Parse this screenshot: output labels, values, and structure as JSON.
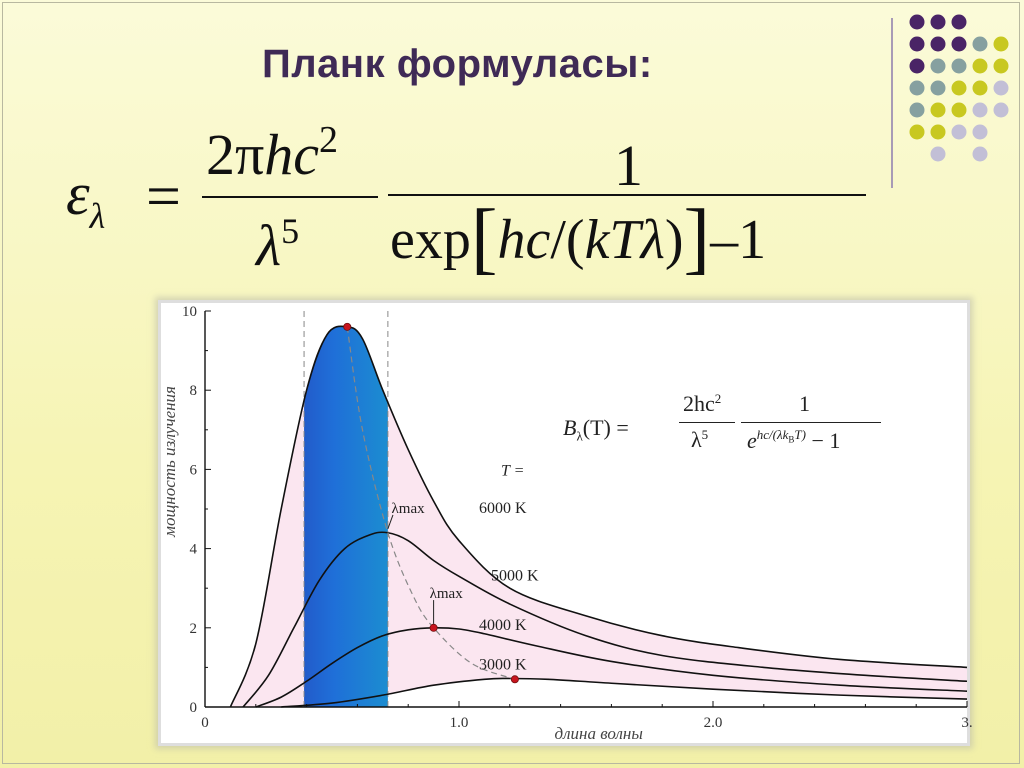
{
  "slide": {
    "title": "Планк формуласы:"
  },
  "formula": {
    "lhs": "ε",
    "lhs_sub": "λ",
    "eq": "=",
    "num1_a": "2π",
    "num1_b": "hc",
    "num1_sup": "2",
    "den1": "λ",
    "den1_sup": "5",
    "num2": "1",
    "den2_a": "exp",
    "den2_b": "hc",
    "den2_c": "/(",
    "den2_d": "kTλ",
    "den2_e": ")",
    "den2_f": "–1"
  },
  "b_formula": {
    "lhs_b": "B",
    "lhs_sub": "λ",
    "lhs_rest": "(T) =",
    "num1": "2hc",
    "num1_sup": "2",
    "den1": "λ",
    "den1_sup": "5",
    "num2": "1",
    "den2_e": "e",
    "den2_sup": "hc/(λk",
    "den2_sup_sub": "B",
    "den2_sup_end": "T)",
    "den2_rest": " − 1"
  },
  "chart_data": {
    "type": "line",
    "xlabel": "длина волны",
    "ylabel": "мощность излучения",
    "xlim": [
      0,
      3.0
    ],
    "ylim": [
      0,
      10
    ],
    "x_ticks": [
      "0",
      "1.0",
      "2.0",
      "3."
    ],
    "y_ticks": [
      "0",
      "2",
      "4",
      "6",
      "8",
      "10"
    ],
    "legend_header": "T =",
    "series": [
      {
        "name": "6000 K",
        "x": [
          0.1,
          0.2,
          0.3,
          0.4,
          0.48,
          0.56,
          0.62,
          0.7,
          0.8,
          0.9,
          1.0,
          1.2,
          1.5,
          1.8,
          2.1,
          2.5,
          3.0
        ],
        "y": [
          0.0,
          1.6,
          5.0,
          8.0,
          9.4,
          9.6,
          9.3,
          8.0,
          6.5,
          5.2,
          4.2,
          3.0,
          2.3,
          1.8,
          1.5,
          1.2,
          1.0
        ]
      },
      {
        "name": "5000 K",
        "x": [
          0.15,
          0.25,
          0.35,
          0.45,
          0.55,
          0.65,
          0.72,
          0.8,
          0.9,
          1.0,
          1.2,
          1.5,
          1.8,
          2.2,
          2.6,
          3.0
        ],
        "y": [
          0.0,
          0.8,
          2.0,
          3.2,
          4.0,
          4.35,
          4.4,
          4.2,
          3.7,
          3.3,
          2.6,
          1.8,
          1.3,
          1.0,
          0.8,
          0.65
        ]
      },
      {
        "name": "4000 K",
        "x": [
          0.2,
          0.3,
          0.4,
          0.5,
          0.6,
          0.7,
          0.8,
          0.9,
          1.0,
          1.1,
          1.3,
          1.6,
          2.0,
          2.5,
          3.0
        ],
        "y": [
          0.0,
          0.25,
          0.65,
          1.1,
          1.5,
          1.8,
          1.95,
          2.0,
          1.97,
          1.85,
          1.55,
          1.15,
          0.8,
          0.55,
          0.4
        ]
      },
      {
        "name": "3000 K",
        "x": [
          0.3,
          0.5,
          0.7,
          0.9,
          1.1,
          1.2,
          1.35,
          1.6,
          2.0,
          2.5,
          3.0
        ],
        "y": [
          0.0,
          0.1,
          0.3,
          0.55,
          0.7,
          0.72,
          0.7,
          0.6,
          0.45,
          0.3,
          0.2
        ]
      }
    ],
    "peak_curve": {
      "x": [
        0.56,
        0.62,
        0.72,
        0.82,
        0.9,
        1.05,
        1.22
      ],
      "y": [
        9.6,
        7.0,
        4.4,
        2.8,
        2.0,
        1.1,
        0.7
      ]
    },
    "peaks": [
      {
        "x": 0.56,
        "y": 9.6
      },
      {
        "x": 0.9,
        "y": 2.0
      },
      {
        "x": 1.22,
        "y": 0.7
      }
    ],
    "annotations": [
      {
        "text": "λmax",
        "x": 0.75,
        "y": 4.9
      },
      {
        "text": "λmax",
        "x": 0.9,
        "y": 2.75
      }
    ],
    "visible_band": [
      0.39,
      0.72
    ],
    "grid": false
  }
}
